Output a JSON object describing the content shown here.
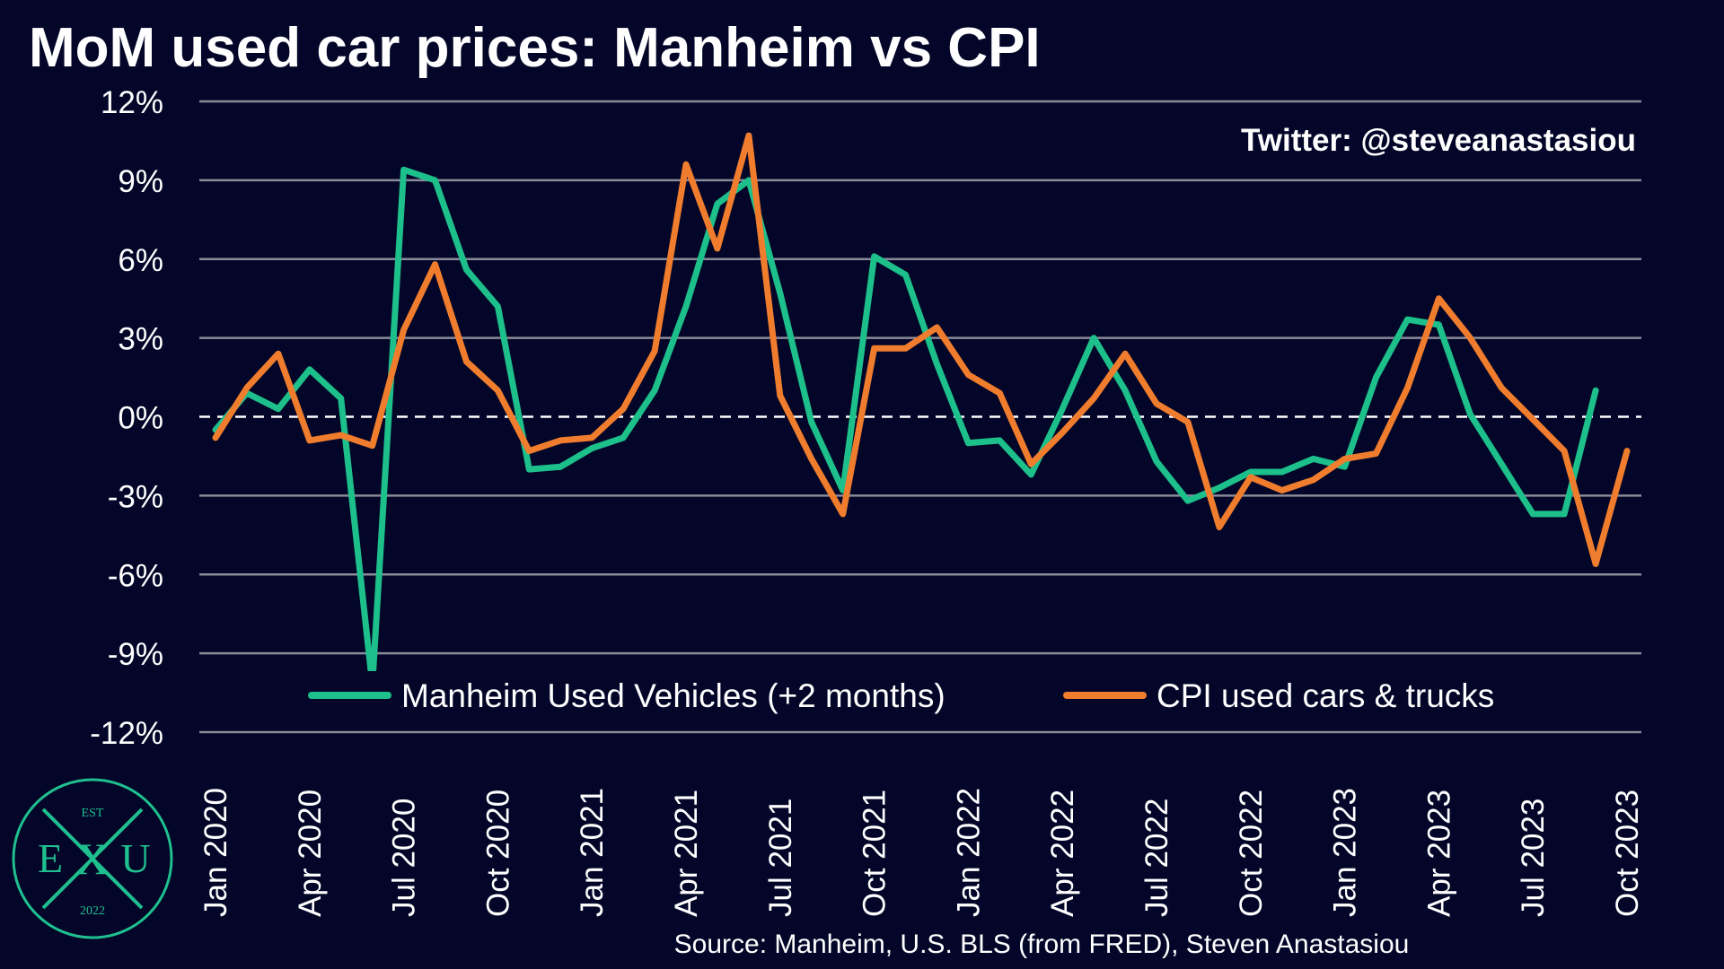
{
  "title": "MoM used car prices: Manheim vs CPI",
  "watermark": "Twitter: @steveanastasiou",
  "source": "Source: Manheim, U.S. BLS (from FRED), Steven Anastasiou",
  "logo": {
    "top": "EST",
    "left": "E",
    "center": "X",
    "right": "U",
    "bottom": "2022",
    "color": "#1fbf8f"
  },
  "chart_data": {
    "type": "line",
    "ylim": [
      -12,
      12
    ],
    "yticks": [
      12,
      9,
      6,
      3,
      0,
      -3,
      -6,
      -9,
      -12
    ],
    "ytick_labels": [
      "12%",
      "9%",
      "6%",
      "3%",
      "0%",
      "-3%",
      "-6%",
      "-9%",
      "-12%"
    ],
    "xticks": [
      {
        "index": 0,
        "label": "Jan 2020"
      },
      {
        "index": 3,
        "label": "Apr 2020"
      },
      {
        "index": 6,
        "label": "Jul 2020"
      },
      {
        "index": 9,
        "label": "Oct 2020"
      },
      {
        "index": 12,
        "label": "Jan 2021"
      },
      {
        "index": 15,
        "label": "Apr 2021"
      },
      {
        "index": 18,
        "label": "Jul 2021"
      },
      {
        "index": 21,
        "label": "Oct 2021"
      },
      {
        "index": 24,
        "label": "Jan 2022"
      },
      {
        "index": 27,
        "label": "Apr 2022"
      },
      {
        "index": 30,
        "label": "Jul 2022"
      },
      {
        "index": 33,
        "label": "Oct 2022"
      },
      {
        "index": 36,
        "label": "Jan 2023"
      },
      {
        "index": 39,
        "label": "Apr 2023"
      },
      {
        "index": 42,
        "label": "Jul 2023"
      },
      {
        "index": 45,
        "label": "Oct 2023"
      }
    ],
    "zero_line": "dashed",
    "grid": true,
    "legend_position": "bottom-center",
    "series": [
      {
        "name": "Manheim Used Vehicles (+2 months)",
        "color": "#1dbf8a",
        "values": [
          -0.5,
          0.9,
          0.3,
          1.8,
          0.7,
          -10.2,
          9.4,
          9.0,
          5.6,
          4.2,
          -2.0,
          -1.9,
          -1.2,
          -0.8,
          1.0,
          4.2,
          8.1,
          9.0,
          4.7,
          -0.2,
          -2.8,
          6.1,
          5.4,
          2.0,
          -1.0,
          -0.9,
          -2.2,
          0.3,
          3.0,
          1.0,
          -1.7,
          -3.2,
          -2.7,
          -2.1,
          -2.1,
          -1.6,
          -1.9,
          1.5,
          3.7,
          3.5,
          0.1,
          -1.8,
          -3.7,
          -3.7,
          1.0
        ]
      },
      {
        "name": "CPI used cars & trucks",
        "color": "#f07d2e",
        "values": [
          -0.8,
          1.1,
          2.4,
          -0.9,
          -0.7,
          -1.1,
          3.3,
          5.8,
          2.1,
          1.0,
          -1.3,
          -0.9,
          -0.8,
          0.3,
          2.5,
          9.6,
          6.4,
          10.7,
          0.8,
          -1.6,
          -3.7,
          2.6,
          2.6,
          3.4,
          1.6,
          0.9,
          -1.8,
          -0.6,
          0.7,
          2.4,
          0.5,
          -0.2,
          -4.2,
          -2.3,
          -2.8,
          -2.4,
          -1.6,
          -1.4,
          1.1,
          4.5,
          3.0,
          1.1,
          -0.1,
          -1.3,
          -5.6,
          -1.3
        ]
      }
    ]
  }
}
